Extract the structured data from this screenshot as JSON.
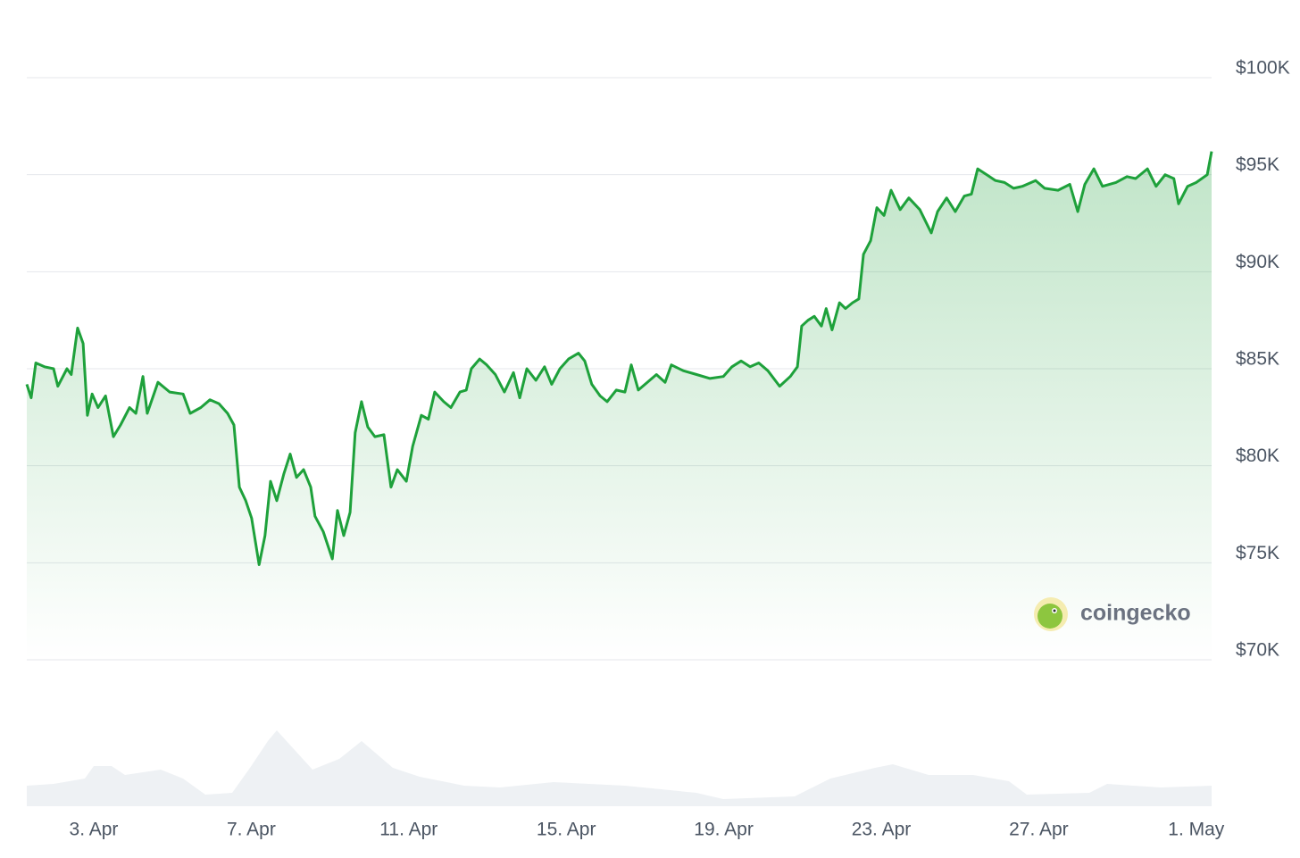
{
  "chart_data": {
    "type": "line",
    "x": [
      1.3,
      1.41,
      1.53,
      1.75,
      1.98,
      2.09,
      2.32,
      2.43,
      2.59,
      2.73,
      2.84,
      2.96,
      3.11,
      3.3,
      3.5,
      3.68,
      3.91,
      4.07,
      4.25,
      4.36,
      4.63,
      4.93,
      5.27,
      5.45,
      5.72,
      5.95,
      6.18,
      6.4,
      6.56,
      6.7,
      6.86,
      7.01,
      7.2,
      7.35,
      7.49,
      7.65,
      7.83,
      7.99,
      8.15,
      8.33,
      8.51,
      8.62,
      8.83,
      9.06,
      9.19,
      9.35,
      9.51,
      9.64,
      9.8,
      9.96,
      10.14,
      10.37,
      10.55,
      10.71,
      10.94,
      11.1,
      11.32,
      11.5,
      11.66,
      11.89,
      12.07,
      12.3,
      12.46,
      12.59,
      12.8,
      12.98,
      13.2,
      13.43,
      13.66,
      13.82,
      14.0,
      14.23,
      14.45,
      14.63,
      14.84,
      15.06,
      15.31,
      15.47,
      15.65,
      15.86,
      16.04,
      16.27,
      16.49,
      16.65,
      16.83,
      17.06,
      17.29,
      17.51,
      17.67,
      17.97,
      18.31,
      18.65,
      18.99,
      19.21,
      19.44,
      19.67,
      19.89,
      20.12,
      20.42,
      20.69,
      20.87,
      20.98,
      21.14,
      21.3,
      21.48,
      21.6,
      21.75,
      21.94,
      22.09,
      22.27,
      22.43,
      22.55,
      22.73,
      22.89,
      23.07,
      23.25,
      23.48,
      23.7,
      23.98,
      24.27,
      24.43,
      24.66,
      24.88,
      25.11,
      25.29,
      25.45,
      25.68,
      25.9,
      26.13,
      26.36,
      26.58,
      26.92,
      27.15,
      27.49,
      27.79,
      27.99,
      28.17,
      28.4,
      28.62,
      28.96,
      29.24,
      29.46,
      29.76,
      29.98,
      30.21,
      30.43,
      30.55,
      30.78,
      31.0,
      31.28,
      31.39
    ],
    "series": [
      {
        "color": "#1ea13b",
        "values": [
          84200,
          83500,
          85300,
          85100,
          85000,
          84100,
          85000,
          84700,
          87100,
          86300,
          82600,
          83700,
          83000,
          83600,
          81500,
          82100,
          83000,
          82700,
          84600,
          82700,
          84300,
          83800,
          83700,
          82700,
          83000,
          83400,
          83200,
          82700,
          82100,
          78900,
          78200,
          77300,
          74900,
          76400,
          79200,
          78200,
          79600,
          80600,
          79400,
          79800,
          78900,
          77400,
          76600,
          75200,
          77700,
          76400,
          77600,
          81700,
          83300,
          82000,
          81500,
          81600,
          78900,
          79800,
          79200,
          81000,
          82600,
          82400,
          83800,
          83300,
          83000,
          83800,
          83900,
          85000,
          85500,
          85200,
          84700,
          83800,
          84800,
          83500,
          85000,
          84400,
          85100,
          84200,
          85000,
          85500,
          85800,
          85400,
          84200,
          83600,
          83300,
          83900,
          83800,
          85200,
          83900,
          84300,
          84700,
          84300,
          85200,
          84900,
          84700,
          84500,
          84600,
          85100,
          85400,
          85100,
          85300,
          84900,
          84100,
          84600,
          85100,
          87200,
          87500,
          87700,
          87200,
          88100,
          87000,
          88400,
          88100,
          88400,
          88600,
          90900,
          91600,
          93300,
          92900,
          94200,
          93200,
          93800,
          93200,
          92000,
          93100,
          93800,
          93100,
          93900,
          94000,
          95300,
          95000,
          94700,
          94600,
          94300,
          94400,
          94700,
          94300,
          94200,
          94500,
          93100,
          94500,
          95300,
          94400,
          94600,
          94900,
          94800,
          95300,
          94400,
          95000,
          94800,
          93500,
          94400,
          94600,
          95000,
          96200
        ]
      }
    ],
    "xlim": [
      1.3,
      31.39
    ],
    "xticks": [
      {
        "value": 3,
        "label": "3. Apr"
      },
      {
        "value": 7,
        "label": "7. Apr"
      },
      {
        "value": 11,
        "label": "11. Apr"
      },
      {
        "value": 15,
        "label": "15. Apr"
      },
      {
        "value": 19,
        "label": "19. Apr"
      },
      {
        "value": 23,
        "label": "23. Apr"
      },
      {
        "value": 27,
        "label": "27. Apr"
      },
      {
        "value": 31,
        "label": "1. May"
      }
    ],
    "ylim": [
      70000,
      100000
    ],
    "yticks": [
      {
        "value": 70000,
        "label": "$70K"
      },
      {
        "value": 75000,
        "label": "$75K"
      },
      {
        "value": 80000,
        "label": "$80K"
      },
      {
        "value": 85000,
        "label": "$85K"
      },
      {
        "value": 90000,
        "label": "$90K"
      },
      {
        "value": 95000,
        "label": "$95K"
      },
      {
        "value": 100000,
        "label": "$100K"
      }
    ],
    "grid": true,
    "watermark": "coingecko"
  }
}
